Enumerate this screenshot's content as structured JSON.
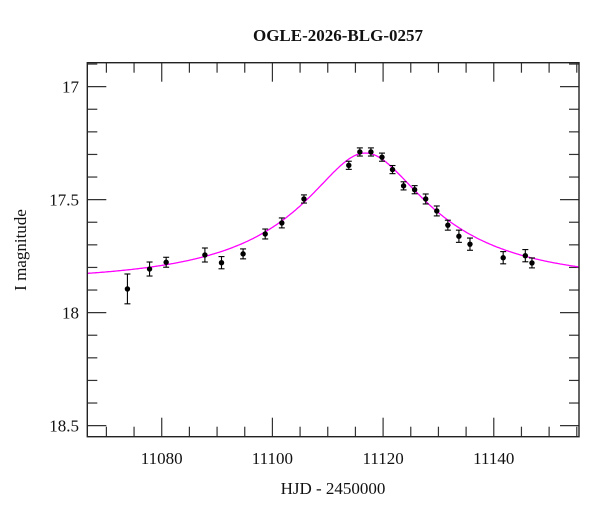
{
  "chart_data": {
    "type": "scatter",
    "title": "OGLE-2026-BLG-0257",
    "xlabel": "HJD - 2450000",
    "ylabel": "I magnitude",
    "xlim": [
      11066.55,
      11155.4
    ],
    "ylim": [
      18.549,
      16.894
    ],
    "y_inverted": true,
    "grid": false,
    "x_major_ticks": [
      11080,
      11100,
      11120,
      11140
    ],
    "x_tick_labels": [
      "11080",
      "11100",
      "11120",
      "11140"
    ],
    "x_minor_step": 5,
    "y_major_ticks": [
      17,
      17.5,
      18,
      18.5
    ],
    "y_tick_labels": [
      "17",
      "17.5",
      "18",
      "18.5"
    ],
    "y_minor_step": 0.1,
    "series": [
      {
        "name": "data",
        "color": "#000000",
        "x": [
          11073.8,
          11077.8,
          11080.8,
          11087.8,
          11090.8,
          11094.7,
          11098.7,
          11101.7,
          11105.7,
          11113.8,
          11115.8,
          11117.8,
          11119.8,
          11121.7,
          11123.7,
          11125.7,
          11127.7,
          11129.7,
          11131.7,
          11133.7,
          11135.7,
          11141.7,
          11145.7,
          11146.9
        ],
        "y": [
          17.895,
          17.807,
          17.777,
          17.745,
          17.779,
          17.74,
          17.652,
          17.603,
          17.497,
          17.348,
          17.289,
          17.289,
          17.312,
          17.367,
          17.439,
          17.456,
          17.497,
          17.55,
          17.613,
          17.662,
          17.697,
          17.757,
          17.748,
          17.78
        ],
        "err": [
          0.066,
          0.031,
          0.022,
          0.031,
          0.027,
          0.022,
          0.022,
          0.022,
          0.018,
          0.018,
          0.018,
          0.018,
          0.018,
          0.018,
          0.018,
          0.018,
          0.022,
          0.022,
          0.022,
          0.027,
          0.027,
          0.027,
          0.027,
          0.022
        ]
      },
      {
        "name": "model",
        "type": "microlensing-fit",
        "color": "#ff00ff",
        "t0": 11116.8,
        "u0": 0.3,
        "tE": 32,
        "fs": 0.28,
        "I0": 17.86
      }
    ]
  }
}
